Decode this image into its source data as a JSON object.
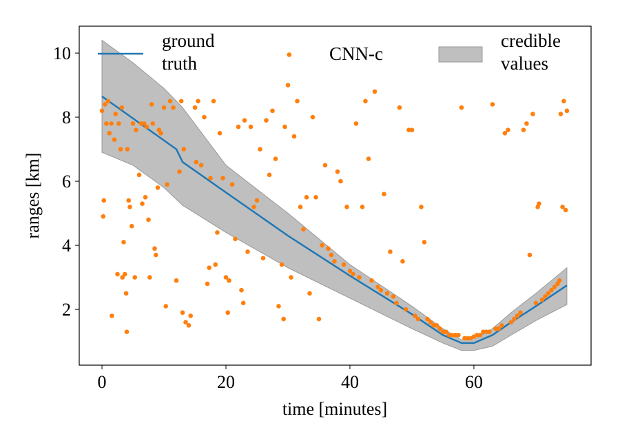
{
  "chart_data": {
    "type": "line",
    "xlabel": "time [minutes]",
    "ylabel": "ranges [km]",
    "xlim": [
      -3.67,
      78.9
    ],
    "ylim": [
      0.26,
      10.84
    ],
    "xticks": [
      0,
      20,
      40,
      60
    ],
    "yticks": [
      2,
      4,
      6,
      8,
      10
    ],
    "series": [
      {
        "name": "ground truth",
        "type": "line",
        "color": "#1f77b4",
        "x": [
          0,
          12,
          12.5,
          13,
          20,
          30,
          40,
          50,
          55,
          58,
          60,
          63,
          66,
          70,
          75
        ],
        "values": [
          8.65,
          7.0,
          6.8,
          6.6,
          5.65,
          4.3,
          3.05,
          1.85,
          1.2,
          0.95,
          0.95,
          1.2,
          1.6,
          2.1,
          2.75
        ]
      },
      {
        "name": "CNN-c",
        "type": "scatter",
        "color": "#ff7f0e",
        "x": [
          0,
          0.2,
          0.3,
          0.5,
          0.7,
          1,
          1.2,
          1.5,
          1.6,
          2,
          2.2,
          2.5,
          2.7,
          3,
          3.2,
          3.3,
          3.5,
          3.7,
          3.9,
          4,
          4.1,
          4.3,
          4.5,
          4.8,
          5,
          5.3,
          5.5,
          6,
          6.3,
          6.5,
          6.8,
          7,
          7.2,
          7.5,
          7.7,
          8,
          8.2,
          8.5,
          8.7,
          9,
          9.2,
          9.5,
          10,
          10.3,
          10.5,
          11,
          11.5,
          12,
          12.5,
          12.8,
          13,
          13.5,
          14,
          14.3,
          13.2,
          15,
          15.5,
          15.2,
          16,
          16.5,
          17,
          17.3,
          17.5,
          18,
          18.3,
          18.6,
          19,
          19.5,
          20,
          20.3,
          20.5,
          21,
          21.5,
          22,
          22.5,
          22.8,
          23,
          23.5,
          24,
          24.5,
          25,
          25.5,
          26,
          26.5,
          27,
          27.5,
          28,
          28.5,
          29,
          29.3,
          29.5,
          30,
          30.2,
          30.5,
          31,
          31.5,
          32,
          32.5,
          33,
          33.5,
          34,
          34.5,
          35,
          35.5,
          36,
          36.5,
          37,
          37.5,
          38,
          38.5,
          39,
          39.5,
          40,
          40.5,
          41,
          41.5,
          42,
          42.5,
          43,
          43.5,
          44,
          44.5,
          45,
          45.5,
          46,
          46.5,
          47,
          47.5,
          48,
          48.5,
          49,
          49.5,
          50,
          50.5,
          51,
          51.5,
          52,
          52.5,
          53,
          53.5,
          54,
          54.5,
          55,
          55.5,
          56,
          56.5,
          57,
          57.5,
          58,
          58.5,
          59,
          59.5,
          60,
          60.5,
          61,
          61.5,
          62,
          62.5,
          63,
          63.5,
          64,
          64.5,
          65,
          65.5,
          66,
          66.5,
          67,
          67.5,
          68,
          68.5,
          69,
          69.5,
          70,
          70.3,
          70.5,
          71,
          71.5,
          72,
          72.5,
          73,
          73.5,
          74,
          74.3,
          74.5,
          75,
          74.8,
          73.8
        ],
        "values": [
          8.2,
          4.9,
          5.4,
          8.4,
          7.8,
          8.5,
          7.5,
          7.8,
          1.8,
          7.3,
          8.1,
          3.1,
          7.8,
          7.0,
          8.3,
          3.0,
          4.1,
          3.1,
          2.5,
          1.3,
          7.0,
          5.4,
          5.2,
          4.6,
          7.8,
          3.0,
          7.6,
          6.2,
          7.8,
          5.3,
          7.8,
          5.5,
          7.7,
          4.8,
          3.0,
          8.4,
          7.8,
          3.9,
          3.7,
          5.8,
          7.6,
          7.5,
          8.3,
          2.1,
          5.9,
          8.5,
          8.3,
          2.9,
          6.3,
          8.5,
          1.9,
          1.6,
          1.5,
          1.8,
          7.0,
          8.3,
          8.5,
          6.6,
          6.5,
          8.0,
          2.8,
          3.3,
          6.1,
          8.5,
          3.4,
          4.4,
          7.5,
          6.1,
          3.0,
          1.9,
          2.9,
          5.9,
          4.2,
          7.7,
          2.6,
          2.2,
          7.9,
          3.8,
          7.7,
          5.2,
          5.4,
          7.0,
          3.6,
          7.9,
          6.2,
          8.2,
          6.7,
          2.1,
          3.4,
          1.7,
          7.7,
          9.0,
          9.95,
          3.0,
          7.4,
          8.5,
          5.2,
          4.5,
          5.5,
          2.5,
          8.0,
          5.5,
          1.7,
          4.0,
          6.5,
          3.9,
          3.7,
          3.5,
          6.3,
          6.0,
          3.4,
          5.2,
          3.2,
          3.1,
          7.8,
          3.0,
          5.2,
          8.5,
          6.7,
          2.9,
          8.8,
          2.7,
          2.6,
          5.6,
          2.5,
          3.8,
          2.4,
          2.2,
          8.3,
          3.5,
          2.0,
          7.6,
          7.6,
          1.8,
          1.7,
          5.2,
          4.1,
          1.7,
          1.6,
          1.5,
          1.5,
          1.4,
          1.3,
          1.3,
          1.2,
          1.2,
          1.2,
          1.2,
          8.3,
          1.1,
          1.1,
          1.1,
          1.15,
          1.2,
          1.2,
          1.3,
          1.3,
          1.3,
          8.4,
          1.4,
          1.4,
          1.5,
          7.5,
          7.6,
          1.6,
          1.7,
          1.8,
          1.9,
          7.6,
          7.8,
          3.7,
          8.1,
          2.2,
          5.2,
          5.3,
          2.3,
          2.4,
          2.5,
          2.6,
          2.7,
          2.8,
          8.1,
          5.2,
          8.5,
          8.2,
          5.1,
          2.9
        ]
      },
      {
        "name": "credible values",
        "type": "band",
        "color": "#bfbfbf",
        "x": [
          0,
          5,
          10,
          13,
          20,
          30,
          40,
          50,
          55,
          58,
          60,
          63,
          66,
          70,
          75
        ],
        "upper": [
          10.4,
          9.7,
          8.9,
          8.3,
          6.5,
          5.0,
          3.4,
          2.1,
          1.4,
          1.05,
          1.05,
          1.4,
          1.9,
          2.5,
          3.3
        ],
        "lower": [
          6.9,
          6.5,
          5.8,
          5.25,
          4.4,
          3.3,
          2.35,
          1.4,
          0.95,
          0.72,
          0.72,
          0.85,
          1.2,
          1.65,
          2.15
        ]
      }
    ]
  }
}
